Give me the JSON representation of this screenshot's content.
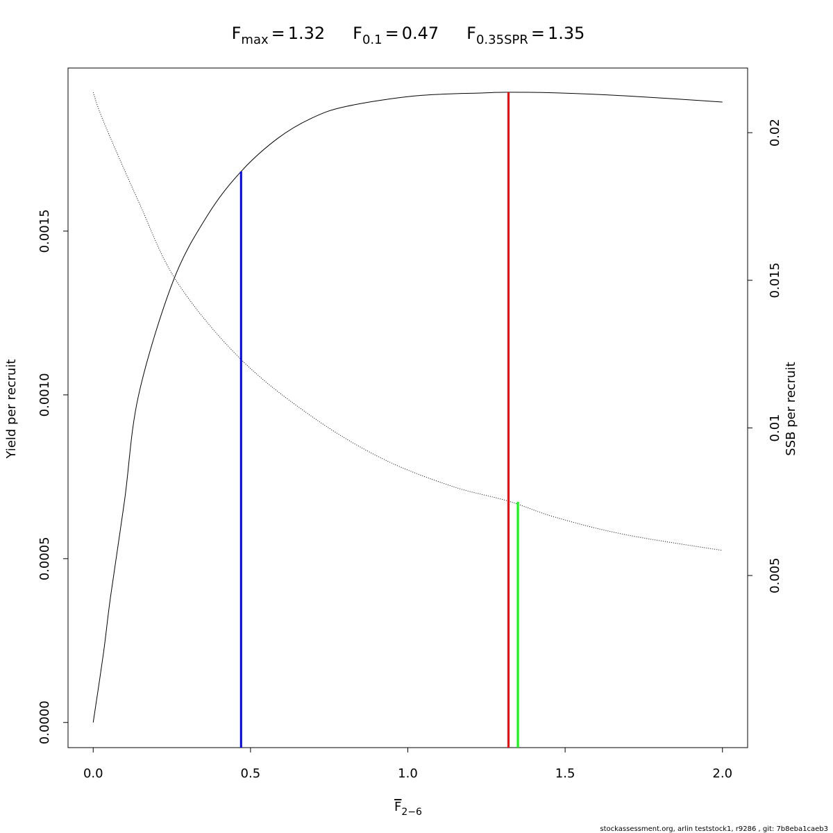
{
  "chart_data": {
    "type": "line",
    "title_operator": "=",
    "references": [
      {
        "symbol": "F",
        "subscript": "max",
        "value": 1.32,
        "color": "#ff0000",
        "height": 0.001924,
        "axis": "y"
      },
      {
        "symbol": "F",
        "subscript": "0.1",
        "value": 0.47,
        "color": "#0000ff",
        "height": 0.001682,
        "axis": "y"
      },
      {
        "symbol": "F",
        "subscript": "0.35SPR",
        "value": 1.35,
        "color": "#00ff00",
        "height": 0.007495,
        "axis": "y2"
      }
    ],
    "xlabel": {
      "symbol": "F",
      "subscript": "2−6"
    },
    "ylabel": "Yield per recruit",
    "y2label": "SSB per recruit",
    "footer": "stockassessment.org, arlin  teststock1, r9286 , git: 7b8eba1caeb3",
    "xlim": [
      -0.08,
      2.08
    ],
    "ylim": [
      -7.68e-05,
      0.0019978
    ],
    "y2lim": [
      -0.00083,
      0.02219
    ],
    "xticks": [
      {
        "value": 0,
        "label": "0.0"
      },
      0.5,
      {
        "value": 1,
        "label": "1.0"
      },
      1.5,
      {
        "value": 2,
        "label": "2.0"
      }
    ],
    "yticks": [
      {
        "value": 0,
        "label": "0.0000"
      },
      0.0005,
      {
        "value": 0.001,
        "label": "0.0010"
      },
      0.0015
    ],
    "y2ticks": [
      0.005,
      0.01,
      0.015,
      0.02
    ],
    "series": [
      {
        "color": "#000000",
        "line_style": "solid",
        "axis": "y",
        "x": [
          0,
          0.033,
          0.055,
          0.1,
          0.144,
          0.254,
          0.364,
          0.47,
          0.585,
          0.695,
          0.806,
          1.026,
          1.247,
          1.32,
          1.468,
          1.689,
          2.0
        ],
        "values": [
          0,
          0.000214,
          0.000383,
          0.00068,
          0.000998,
          0.001347,
          0.001549,
          0.001682,
          0.001782,
          0.001845,
          0.001881,
          0.001913,
          0.001922,
          0.001924,
          0.001922,
          0.001913,
          0.001894
        ]
      },
      {
        "color": "#000000",
        "line_style": "dotted",
        "axis": "y2",
        "x": [
          0,
          0.033,
          0.144,
          0.265,
          0.468,
          0.695,
          0.916,
          1.137,
          1.32,
          1.468,
          1.689,
          2.0
        ],
        "values": [
          0.021363,
          0.020376,
          0.017673,
          0.01497,
          0.012337,
          0.010386,
          0.008975,
          0.008035,
          0.007518,
          0.006977,
          0.006389,
          0.005849
        ]
      }
    ]
  }
}
